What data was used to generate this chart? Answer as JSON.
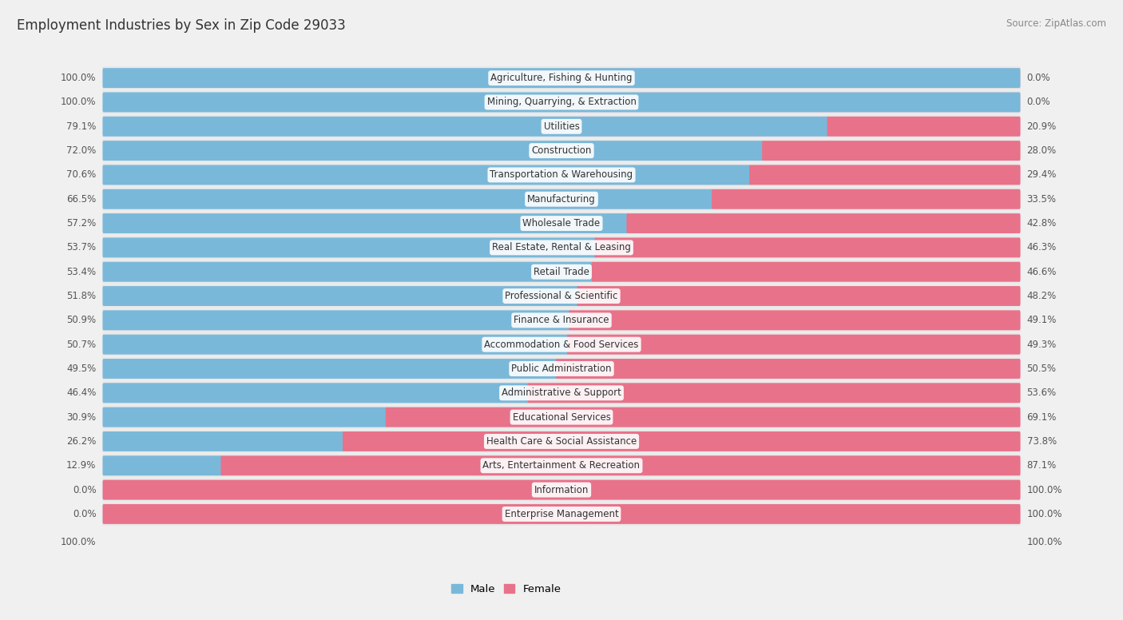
{
  "title": "Employment Industries by Sex in Zip Code 29033",
  "source": "Source: ZipAtlas.com",
  "categories": [
    "Agriculture, Fishing & Hunting",
    "Mining, Quarrying, & Extraction",
    "Utilities",
    "Construction",
    "Transportation & Warehousing",
    "Manufacturing",
    "Wholesale Trade",
    "Real Estate, Rental & Leasing",
    "Retail Trade",
    "Professional & Scientific",
    "Finance & Insurance",
    "Accommodation & Food Services",
    "Public Administration",
    "Administrative & Support",
    "Educational Services",
    "Health Care & Social Assistance",
    "Arts, Entertainment & Recreation",
    "Information",
    "Enterprise Management"
  ],
  "male_pct": [
    100.0,
    100.0,
    79.1,
    72.0,
    70.6,
    66.5,
    57.2,
    53.7,
    53.4,
    51.8,
    50.9,
    50.7,
    49.5,
    46.4,
    30.9,
    26.2,
    12.9,
    0.0,
    0.0
  ],
  "female_pct": [
    0.0,
    0.0,
    20.9,
    28.0,
    29.4,
    33.5,
    42.8,
    46.3,
    46.6,
    48.2,
    49.1,
    49.3,
    50.5,
    53.6,
    69.1,
    73.8,
    87.1,
    100.0,
    100.0
  ],
  "male_color": "#7ab8d9",
  "female_color": "#e8728a",
  "male_bg_color": "#cde3f0",
  "female_bg_color": "#f5cdd6",
  "page_bg": "#f0f0f0",
  "row_bg": "#ffffff",
  "label_fontsize": 8.5,
  "title_fontsize": 12,
  "source_fontsize": 8.5
}
